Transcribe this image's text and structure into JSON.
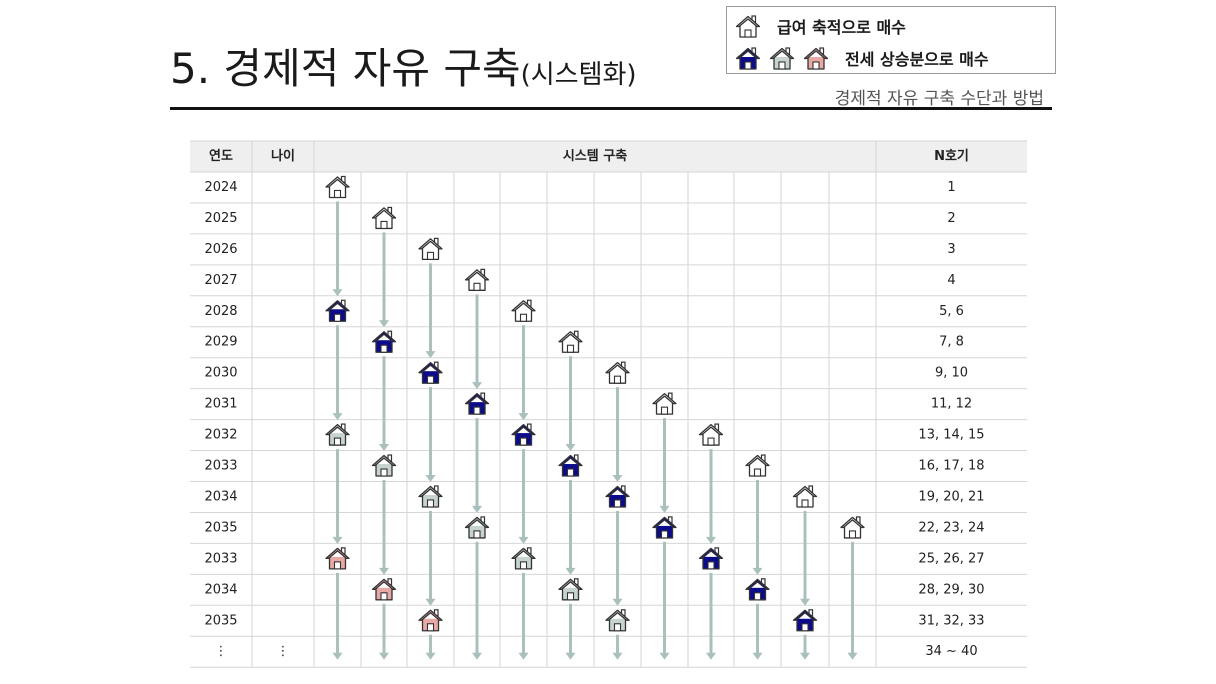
{
  "title": {
    "main": "5. 경제적 자유 구축",
    "sub": "(시스템화)"
  },
  "subtitle": "경제적 자유 구축 수단과 방법",
  "legend": {
    "salary_label": "급여 축적으로 매수",
    "jeonse_label": "전세 상승분으로 매수"
  },
  "colors": {
    "white": "#ffffff",
    "navy": "#0b0b8c",
    "gray": "#c7d3cf",
    "pink": "#e8a8a6",
    "arrow": "#a9c0bd"
  },
  "table": {
    "headers": {
      "year": "연도",
      "age": "나이",
      "system": "시스템 구축",
      "count": "N호기"
    },
    "rows": [
      {
        "year": "2024",
        "age": "",
        "count": "1"
      },
      {
        "year": "2025",
        "age": "",
        "count": "2"
      },
      {
        "year": "2026",
        "age": "",
        "count": "3"
      },
      {
        "year": "2027",
        "age": "",
        "count": "4"
      },
      {
        "year": "2028",
        "age": "",
        "count": "5, 6"
      },
      {
        "year": "2029",
        "age": "",
        "count": "7, 8"
      },
      {
        "year": "2030",
        "age": "",
        "count": "9, 10"
      },
      {
        "year": "2031",
        "age": "",
        "count": "11, 12"
      },
      {
        "year": "2032",
        "age": "",
        "count": "13, 14, 15"
      },
      {
        "year": "2033",
        "age": "",
        "count": "16, 17, 18"
      },
      {
        "year": "2034",
        "age": "",
        "count": "19, 20, 21"
      },
      {
        "year": "2035",
        "age": "",
        "count": "22, 23, 24"
      },
      {
        "year": "2033",
        "age": "",
        "count": "25, 26, 27"
      },
      {
        "year": "2034",
        "age": "",
        "count": "28, 29, 30"
      },
      {
        "year": "2035",
        "age": "",
        "count": "31, 32, 33"
      },
      {
        "year": "⋮",
        "age": "⋮",
        "count": "34 ~ 40"
      }
    ],
    "houses": [
      {
        "col": 0,
        "row": 0,
        "type": "white"
      },
      {
        "col": 0,
        "row": 4,
        "type": "navy"
      },
      {
        "col": 0,
        "row": 8,
        "type": "gray"
      },
      {
        "col": 0,
        "row": 12,
        "type": "pink"
      },
      {
        "col": 1,
        "row": 1,
        "type": "white"
      },
      {
        "col": 1,
        "row": 5,
        "type": "navy"
      },
      {
        "col": 1,
        "row": 9,
        "type": "gray"
      },
      {
        "col": 1,
        "row": 13,
        "type": "pink"
      },
      {
        "col": 2,
        "row": 2,
        "type": "white"
      },
      {
        "col": 2,
        "row": 6,
        "type": "navy"
      },
      {
        "col": 2,
        "row": 10,
        "type": "gray"
      },
      {
        "col": 2,
        "row": 14,
        "type": "pink"
      },
      {
        "col": 3,
        "row": 3,
        "type": "white"
      },
      {
        "col": 3,
        "row": 7,
        "type": "navy"
      },
      {
        "col": 3,
        "row": 11,
        "type": "gray"
      },
      {
        "col": 4,
        "row": 4,
        "type": "white"
      },
      {
        "col": 4,
        "row": 8,
        "type": "navy"
      },
      {
        "col": 4,
        "row": 12,
        "type": "gray"
      },
      {
        "col": 5,
        "row": 5,
        "type": "white"
      },
      {
        "col": 5,
        "row": 9,
        "type": "navy"
      },
      {
        "col": 5,
        "row": 13,
        "type": "gray"
      },
      {
        "col": 6,
        "row": 6,
        "type": "white"
      },
      {
        "col": 6,
        "row": 10,
        "type": "navy"
      },
      {
        "col": 6,
        "row": 14,
        "type": "gray"
      },
      {
        "col": 7,
        "row": 7,
        "type": "white"
      },
      {
        "col": 7,
        "row": 11,
        "type": "navy"
      },
      {
        "col": 8,
        "row": 8,
        "type": "white"
      },
      {
        "col": 8,
        "row": 12,
        "type": "navy"
      },
      {
        "col": 9,
        "row": 9,
        "type": "white"
      },
      {
        "col": 9,
        "row": 13,
        "type": "navy"
      },
      {
        "col": 10,
        "row": 10,
        "type": "white"
      },
      {
        "col": 10,
        "row": 14,
        "type": "navy"
      },
      {
        "col": 11,
        "row": 11,
        "type": "white"
      }
    ]
  }
}
